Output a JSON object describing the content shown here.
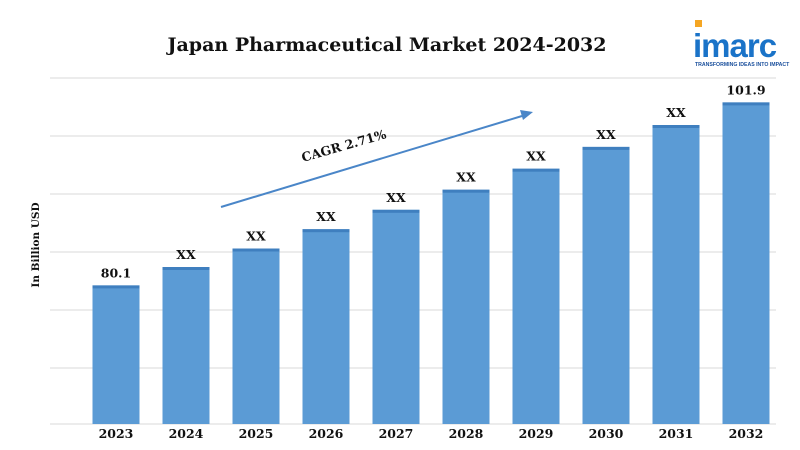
{
  "logo": {
    "name": "imarc",
    "tagline": "TRANSFORMING IDEAS INTO IMPACT"
  },
  "colors": {
    "bar_fill": "#5b9bd5",
    "bar_top": "#3f7fbf",
    "arrow": "#4a86c8",
    "gridline": "#d9d9d9",
    "logo_blue": "#1a73c8",
    "logo_orange": "#f5a623"
  },
  "chart_data": {
    "type": "bar",
    "title": "Japan Pharmaceutical Market 2024-2032",
    "xlabel": "",
    "ylabel": "In Billion USD",
    "categories": [
      "2023",
      "2024",
      "2025",
      "2026",
      "2027",
      "2028",
      "2029",
      "2030",
      "2031",
      "2032"
    ],
    "values": [
      80.1,
      82.3,
      84.5,
      86.8,
      89.1,
      91.5,
      94.0,
      96.6,
      99.2,
      101.9
    ],
    "data_labels": [
      "80.1",
      "XX",
      "XX",
      "XX",
      "XX",
      "XX",
      "XX",
      "XX",
      "XX",
      "101.9"
    ],
    "ylim": [
      63.6,
      104.8
    ],
    "grid": true,
    "annotation": {
      "text": "CAGR 2.71%",
      "style": "arrow"
    }
  }
}
